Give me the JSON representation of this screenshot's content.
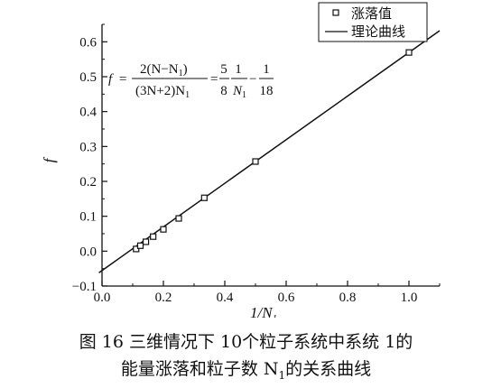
{
  "chart_data": {
    "type": "scatter",
    "xlabel": "1/N",
    "xlabel_sub": "1",
    "ylabel": "f",
    "xlim": [
      0.0,
      1.1
    ],
    "ylim": [
      -0.1,
      0.65
    ],
    "xticks": [
      "0.0",
      "0.2",
      "0.4",
      "0.6",
      "0.8",
      "1.0"
    ],
    "yticks": [
      "-0.1",
      "0.0",
      "0.1",
      "0.2",
      "0.3",
      "0.4",
      "0.5",
      "0.6"
    ],
    "grid": false,
    "legend_position": "top-right",
    "series": [
      {
        "name": "涨落值",
        "kind": "points",
        "marker": "open-square",
        "x": [
          0.1111,
          0.125,
          0.1429,
          0.1667,
          0.2,
          0.25,
          0.3333,
          0.5,
          1.0
        ],
        "y": [
          0.0062,
          0.0156,
          0.0268,
          0.0417,
          0.0625,
          0.0938,
          0.1528,
          0.2569,
          0.5694
        ]
      },
      {
        "name": "理论曲线",
        "kind": "line",
        "x": [
          -0.01,
          1.1
        ],
        "y": [
          -0.0618,
          0.6319
        ]
      }
    ],
    "annotation": {
      "f_label": "f",
      "equals": "=",
      "num1": "2(N−N",
      "num1_sub": "1",
      "num1_end": ")",
      "den1": "(3N+2)N",
      "den1_sub": "1",
      "frac2_num": "5",
      "frac2_den": "8",
      "frac3_num": "1",
      "frac3_den": "N",
      "frac3_den_sub": "1",
      "minus": "−",
      "frac4_num": "1",
      "frac4_den": "18"
    }
  },
  "caption": {
    "line1": "图  16    三维情况下  10个粒子系统中系统  1的",
    "line2_pre": "能量涨落和粒子数  N",
    "line2_sub": "1",
    "line2_post": "的关系曲线"
  }
}
